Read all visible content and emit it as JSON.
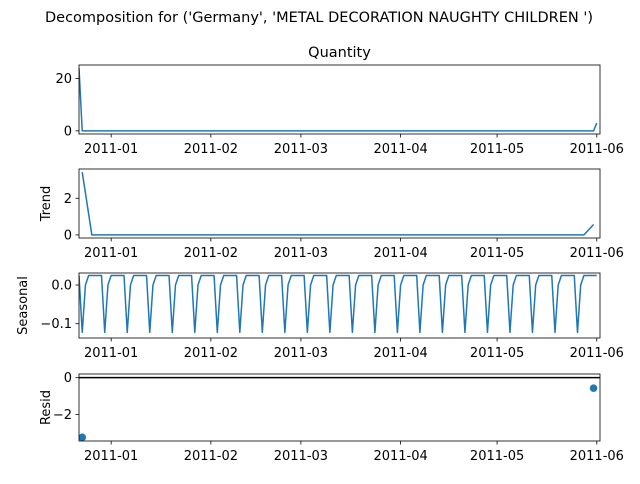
{
  "chart_data": {
    "type": "line",
    "suptitle": "Decomposition for ('Germany', 'METAL DECORATION NAUGHTY CHILDREN ')",
    "x_tick_labels": [
      "2011-01",
      "2011-02",
      "2011-03",
      "2011-04",
      "2011-05",
      "2011-06"
    ],
    "x_range": [
      "2010-12-22",
      "2011-06-02"
    ],
    "line_color": "#1f77b4",
    "panels": [
      {
        "name": "observed",
        "title": "Quantity",
        "ylabel": "",
        "kind": "line",
        "y_ticks": [
          0,
          20
        ],
        "ylim": [
          -1.2,
          25.2
        ],
        "x": [
          "2010-12-22",
          "2010-12-23",
          "2011-05-31",
          "2011-06-01"
        ],
        "y": [
          24,
          0,
          0,
          3
        ]
      },
      {
        "name": "trend",
        "title": "",
        "ylabel": "Trend",
        "kind": "line",
        "y_ticks": [
          0,
          2
        ],
        "ylim": [
          -0.17,
          3.6
        ],
        "x": [
          "2010-12-23",
          "2010-12-26",
          "2011-05-28",
          "2011-05-31"
        ],
        "y": [
          3.43,
          0,
          0,
          0.57
        ]
      },
      {
        "name": "seasonal",
        "title": "",
        "ylabel": "Seasonal",
        "kind": "line",
        "y_ticks": [
          0.0,
          -0.1
        ],
        "y_tick_labels": [
          "0.0",
          "−0.1"
        ],
        "ylim": [
          -0.137,
          0.031
        ],
        "period": 7,
        "x_start": "2010-12-22",
        "x_end": "2011-06-01",
        "pattern": [
          0.0245,
          -0.1225,
          0.0,
          0.0245,
          0.0245,
          0.0245,
          0.0245
        ]
      },
      {
        "name": "resid",
        "title": "",
        "ylabel": "Resid",
        "kind": "scatter",
        "y_ticks": [
          0,
          -2
        ],
        "y_tick_labels": [
          "0",
          "−2"
        ],
        "ylim": [
          -3.45,
          0.2
        ],
        "baseline": 0,
        "x_start": "2010-12-26",
        "x_end": "2011-05-28",
        "pattern": [
          0.0,
          -0.02,
          -0.02,
          -0.02,
          0.0,
          0.0,
          0.0
        ],
        "outliers": [
          {
            "x": "2010-12-23",
            "y": -3.25
          },
          {
            "x": "2011-05-31",
            "y": -0.57
          }
        ]
      }
    ]
  }
}
